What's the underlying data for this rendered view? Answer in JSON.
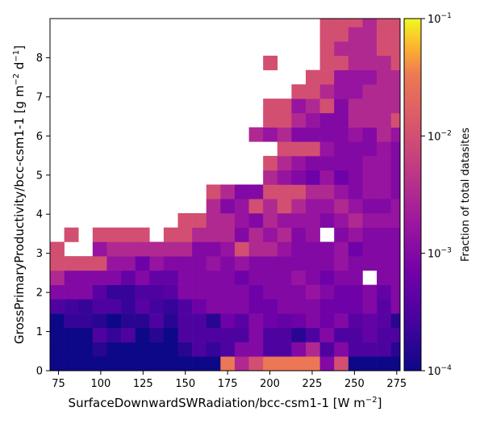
{
  "chart_data": {
    "type": "heatmap",
    "x_edges_start": 70,
    "x_bin_width": 8.4,
    "y_edges_start": 0,
    "y_bin_width": 0.366,
    "xlim": [
      70,
      277
    ],
    "ylim": [
      0,
      9
    ],
    "x_ticks": [
      75,
      100,
      125,
      150,
      175,
      200,
      225,
      250,
      275
    ],
    "y_ticks": [
      0,
      1,
      2,
      3,
      4,
      5,
      6,
      7,
      8
    ],
    "x_tick_labels": [
      "75",
      "100",
      "125",
      "150",
      "175",
      "200",
      "225",
      "250",
      "275"
    ],
    "y_tick_labels": [
      "0",
      "1",
      "2",
      "3",
      "4",
      "5",
      "6",
      "7",
      "8"
    ],
    "xlabel": "SurfaceDownwardSWRadiation/bcc-csm1-1 [W m",
    "xlabel_sup": "−2",
    "xlabel_end": "]",
    "ylabel": "GrossPrimaryProductivity/bcc-csm1-1 [g m",
    "ylabel_sup1": "−2",
    "ylabel_mid": " d",
    "ylabel_sup2": "−1",
    "ylabel_end": "]",
    "colormap": "plasma",
    "color_scale": "log",
    "color_range": [
      0.0001,
      0.1
    ],
    "colorbar_label": "Fraction of total datasites",
    "colorbar_ticks": [
      {
        "base": "10",
        "exp": "−1",
        "value": 0.1
      },
      {
        "base": "10",
        "exp": "−2",
        "value": 0.01
      },
      {
        "base": "10",
        "exp": "−3",
        "value": 0.001
      },
      {
        "base": "10",
        "exp": "−4",
        "value": 0.0001
      }
    ],
    "grid_rows_bottom_to_top": [
      [
        4.7,
        5.0,
        5.0,
        4.0,
        5.5,
        5.5,
        5.5,
        5.5,
        5.5,
        4.0,
        5.2,
        4.5,
        1.5,
        2.5,
        2.0,
        1.5,
        1.5,
        1.5,
        1.5,
        3.0,
        2.0,
        4.0,
        4.5,
        4.8,
        4.8,
        4.8,
        4.5,
        4.5,
        4.0,
        4.5
      ],
      [
        5.0,
        4.5,
        4.3,
        3.8,
        4.5,
        4.8,
        5.0,
        5.0,
        5.0,
        3.8,
        3.5,
        3.7,
        3.5,
        3.0,
        3.0,
        3.5,
        3.5,
        3.0,
        2.5,
        3.5,
        3.0,
        3.5,
        3.5,
        3.5,
        3.8,
        3.8,
        3.8,
        3.8,
        3.5,
        3.5
      ],
      [
        4.5,
        4.2,
        4.0,
        3.5,
        3.7,
        3.5,
        4.0,
        3.8,
        4.0,
        3.5,
        3.5,
        3.5,
        3.5,
        3.5,
        3.0,
        3.5,
        3.5,
        3.8,
        3.5,
        3.0,
        3.5,
        3.5,
        3.3,
        3.5,
        3.5,
        3.8,
        3.5,
        3.3,
        3.5,
        2.0
      ],
      [
        4.0,
        3.7,
        3.7,
        3.8,
        4.0,
        3.8,
        3.8,
        3.5,
        3.8,
        3.5,
        3.5,
        3.8,
        3.2,
        3.4,
        3.0,
        3.2,
        3.3,
        3.2,
        3.0,
        3.2,
        3.0,
        3.4,
        3.3,
        3.4,
        3.8,
        4.2,
        3.4,
        3.6,
        3.0,
        null
      ],
      [
        3.5,
        3.6,
        3.7,
        3.5,
        3.5,
        3.7,
        3.4,
        3.6,
        3.7,
        3.5,
        3.2,
        3.0,
        3.0,
        3.0,
        3.2,
        3.2,
        3.0,
        3.0,
        3.0,
        3.2,
        3.2,
        3.2,
        3.0,
        3.4,
        3.0,
        3.3,
        3.0,
        3.0,
        3.0,
        null
      ],
      [
        3.0,
        3.0,
        3.0,
        3.4,
        3.7,
        3.7,
        3.5,
        3.5,
        3.4,
        3.0,
        3.0,
        3.0,
        3.0,
        3.0,
        3.2,
        3.0,
        3.0,
        3.0,
        2.8,
        3.0,
        3.2,
        3.2,
        3.0,
        3.3,
        3.0,
        3.3,
        3.2,
        3.0,
        3.0,
        null
      ],
      [
        2.5,
        3.0,
        3.0,
        3.0,
        3.0,
        3.3,
        3.0,
        3.3,
        3.3,
        3.0,
        3.0,
        3.0,
        3.0,
        3.2,
        3.0,
        3.0,
        3.0,
        2.8,
        3.0,
        3.2,
        3.0,
        3.0,
        null,
        3.0,
        3.0,
        3.0,
        3.0,
        3.0,
        3.0,
        2.0
      ],
      [
        2.0,
        2.0,
        2.0,
        2.0,
        2.8,
        2.8,
        3.2,
        2.8,
        3.0,
        3.0,
        3.0,
        2.8,
        3.0,
        2.8,
        3.0,
        3.0,
        3.0,
        3.0,
        3.0,
        3.0,
        2.8,
        3.0,
        3.0,
        3.0,
        3.0,
        3.0,
        3.2,
        2.8,
        3.0,
        3.0
      ],
      [
        2.0,
        null,
        null,
        2.8,
        2.5,
        2.5,
        2.5,
        2.5,
        2.5,
        2.5,
        3.0,
        3.0,
        2.8,
        2.0,
        2.5,
        2.5,
        2.8,
        3.0,
        3.0,
        3.0,
        2.8,
        3.2,
        3.0,
        3.0,
        3.0,
        2.8,
        2.5,
        2.0,
        2.5,
        null
      ],
      [
        null,
        2.0,
        null,
        2.0,
        2.0,
        2.0,
        2.0,
        null,
        2.0,
        2.0,
        2.5,
        2.5,
        2.5,
        3.0,
        2.5,
        2.8,
        2.5,
        3.0,
        2.8,
        null,
        3.0,
        2.8,
        3.0,
        3.0,
        3.0,
        2.8,
        3.0,
        2.5,
        3.0,
        null
      ],
      [
        null,
        null,
        null,
        null,
        null,
        null,
        null,
        null,
        null,
        2.0,
        2.0,
        2.5,
        2.5,
        2.8,
        3.0,
        2.5,
        2.8,
        2.8,
        2.8,
        3.0,
        2.8,
        2.5,
        2.8,
        2.8,
        2.8,
        3.0,
        2.8,
        2.5,
        2.0,
        null
      ],
      [
        null,
        null,
        null,
        null,
        null,
        null,
        null,
        null,
        null,
        null,
        null,
        2.5,
        3.0,
        2.8,
        2.0,
        2.5,
        2.0,
        2.5,
        2.8,
        2.8,
        2.5,
        2.8,
        3.0,
        3.0,
        2.8,
        2.8,
        3.0,
        3.0,
        2.5,
        2.0
      ],
      [
        null,
        null,
        null,
        null,
        null,
        null,
        null,
        null,
        null,
        null,
        null,
        2.0,
        2.5,
        3.0,
        3.0,
        2.0,
        2.0,
        2.0,
        2.5,
        2.5,
        2.8,
        3.0,
        2.8,
        2.8,
        3.0,
        3.0,
        3.0,
        3.0,
        2.5,
        null
      ],
      [
        null,
        null,
        null,
        null,
        null,
        null,
        null,
        null,
        null,
        null,
        null,
        null,
        null,
        null,
        null,
        2.5,
        2.8,
        3.0,
        3.2,
        2.8,
        3.2,
        3.0,
        2.8,
        2.8,
        3.0,
        3.0,
        2.5,
        3.0,
        2.0,
        null
      ],
      [
        null,
        null,
        null,
        null,
        null,
        null,
        null,
        null,
        null,
        null,
        null,
        null,
        null,
        null,
        null,
        2.0,
        2.5,
        2.8,
        3.0,
        3.0,
        3.0,
        3.0,
        2.8,
        2.8,
        3.0,
        2.5,
        2.8,
        2.5,
        null,
        null
      ],
      [
        null,
        null,
        null,
        null,
        null,
        null,
        null,
        null,
        null,
        null,
        null,
        null,
        null,
        null,
        null,
        null,
        2.0,
        2.0,
        2.0,
        2.8,
        3.0,
        3.0,
        3.0,
        2.8,
        3.0,
        2.8,
        2.5,
        2.5,
        2.0,
        null
      ],
      [
        null,
        null,
        null,
        null,
        null,
        null,
        null,
        null,
        null,
        null,
        null,
        null,
        null,
        null,
        2.5,
        2.8,
        2.5,
        3.0,
        3.0,
        3.0,
        3.0,
        2.8,
        3.0,
        2.5,
        2.8,
        2.5,
        2.5,
        2.0,
        null,
        null
      ],
      [
        null,
        null,
        null,
        null,
        null,
        null,
        null,
        null,
        null,
        null,
        null,
        null,
        null,
        null,
        null,
        2.0,
        2.0,
        2.5,
        2.8,
        3.0,
        3.0,
        2.5,
        2.5,
        2.5,
        2.0,
        2.0,
        2.0,
        null,
        null,
        null
      ],
      [
        null,
        null,
        null,
        null,
        null,
        null,
        null,
        null,
        null,
        null,
        null,
        null,
        null,
        null,
        null,
        2.0,
        2.0,
        2.8,
        2.5,
        2.0,
        3.0,
        2.5,
        2.5,
        2.5,
        2.5,
        2.0,
        null,
        null,
        null,
        null
      ],
      [
        null,
        null,
        null,
        null,
        null,
        null,
        null,
        null,
        null,
        null,
        null,
        null,
        null,
        null,
        null,
        null,
        null,
        2.0,
        2.0,
        2.5,
        2.8,
        2.8,
        2.5,
        2.5,
        2.5,
        2.0,
        null,
        null,
        null,
        null
      ],
      [
        null,
        null,
        null,
        null,
        null,
        null,
        null,
        null,
        null,
        null,
        null,
        null,
        null,
        null,
        null,
        null,
        null,
        null,
        2.0,
        2.0,
        2.8,
        2.8,
        2.8,
        2.5,
        2.5,
        null,
        null,
        null,
        null,
        null
      ],
      [
        null,
        null,
        null,
        null,
        null,
        null,
        null,
        null,
        null,
        null,
        null,
        null,
        null,
        null,
        null,
        2.0,
        null,
        null,
        null,
        2.0,
        2.0,
        2.5,
        2.5,
        2.5,
        2.0,
        null,
        null,
        null,
        null,
        null
      ],
      [
        null,
        null,
        null,
        null,
        null,
        null,
        null,
        null,
        null,
        null,
        null,
        null,
        null,
        null,
        null,
        null,
        null,
        null,
        null,
        2.0,
        2.5,
        2.5,
        2.5,
        2.0,
        2.0,
        null,
        null,
        null,
        null,
        null
      ],
      [
        null,
        null,
        null,
        null,
        null,
        null,
        null,
        null,
        null,
        null,
        null,
        null,
        null,
        null,
        null,
        null,
        null,
        null,
        null,
        2.0,
        2.0,
        2.5,
        2.5,
        2.0,
        2.0,
        null,
        null,
        null,
        null,
        null
      ],
      [
        null,
        null,
        null,
        null,
        null,
        null,
        null,
        null,
        null,
        null,
        null,
        null,
        null,
        null,
        null,
        null,
        null,
        null,
        null,
        2.0,
        2.0,
        2.0,
        2.5,
        2.0,
        2.0,
        null,
        null,
        null,
        null,
        null
      ],
      [
        null,
        null,
        null,
        null,
        null,
        null,
        null,
        null,
        null,
        null,
        null,
        null,
        null,
        null,
        null,
        null,
        null,
        null,
        null,
        2.0,
        2.0,
        2.0,
        null,
        2.0,
        2.0,
        null,
        null,
        null,
        null,
        null
      ],
      [
        null,
        null,
        null,
        null,
        null,
        null,
        null,
        null,
        null,
        null,
        null,
        null,
        null,
        null,
        null,
        null,
        2.0,
        2.0,
        2.0,
        2.5,
        2.0,
        2.0,
        null,
        null,
        2.0,
        null,
        null,
        null,
        null,
        null
      ],
      [
        null,
        null,
        null,
        null,
        null,
        null,
        null,
        null,
        null,
        null,
        null,
        null,
        null,
        null,
        null,
        null,
        null,
        null,
        2.0,
        2.0,
        2.0,
        2.5,
        null,
        2.0,
        2.0,
        null,
        null,
        null,
        null,
        null
      ],
      [
        null,
        null,
        null,
        null,
        null,
        null,
        null,
        null,
        null,
        null,
        null,
        null,
        null,
        null,
        null,
        null,
        null,
        null,
        null,
        2.0,
        2.0,
        2.0,
        2.0,
        null,
        2.0,
        null,
        null,
        null,
        null,
        null
      ],
      [
        null,
        null,
        null,
        null,
        null,
        null,
        null,
        null,
        null,
        null,
        null,
        null,
        null,
        null,
        null,
        null,
        null,
        null,
        null,
        null,
        null,
        null,
        null,
        null,
        null,
        null,
        null,
        null,
        null,
        null
      ]
    ],
    "value_encoding": "cell value = -log10(fraction of total datasites)"
  }
}
